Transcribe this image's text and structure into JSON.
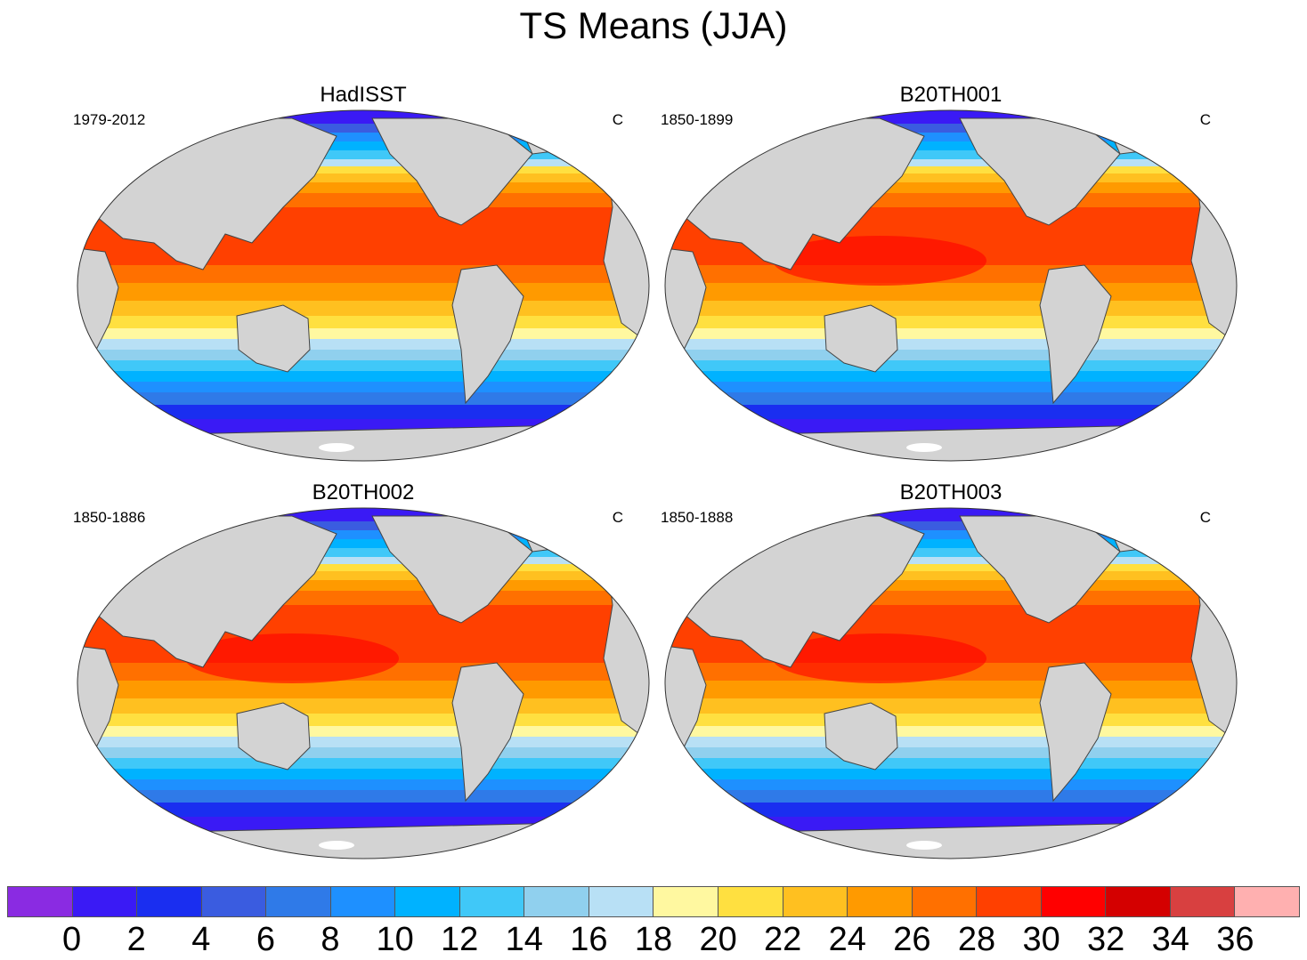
{
  "title": "TS Means (JJA)",
  "panels": [
    {
      "title": "HadISST",
      "period": "1979-2012",
      "units": "C"
    },
    {
      "title": "B20TH001",
      "period": "1850-1899",
      "units": "C"
    },
    {
      "title": "B20TH002",
      "period": "1850-1886",
      "units": "C"
    },
    {
      "title": "B20TH003",
      "period": "1850-1888",
      "units": "C"
    }
  ],
  "colorbar": {
    "colors": [
      "#8a2be2",
      "#3a1af5",
      "#1a2ef0",
      "#3a5ce0",
      "#2f7ae8",
      "#1e90ff",
      "#00b2ff",
      "#40c8f8",
      "#90d0ee",
      "#b8e0f5",
      "#fff8a0",
      "#ffe040",
      "#ffc020",
      "#ff9a00",
      "#ff7000",
      "#ff4000",
      "#ff0000",
      "#d40000",
      "#d84040",
      "#ffb0b0"
    ],
    "tick_labels": [
      "0",
      "2",
      "4",
      "6",
      "8",
      "10",
      "12",
      "14",
      "16",
      "18",
      "20",
      "22",
      "24",
      "26",
      "28",
      "30",
      "32",
      "34",
      "36"
    ]
  },
  "map_colors": {
    "land": "#d3d3d3",
    "outline": "#444444"
  }
}
